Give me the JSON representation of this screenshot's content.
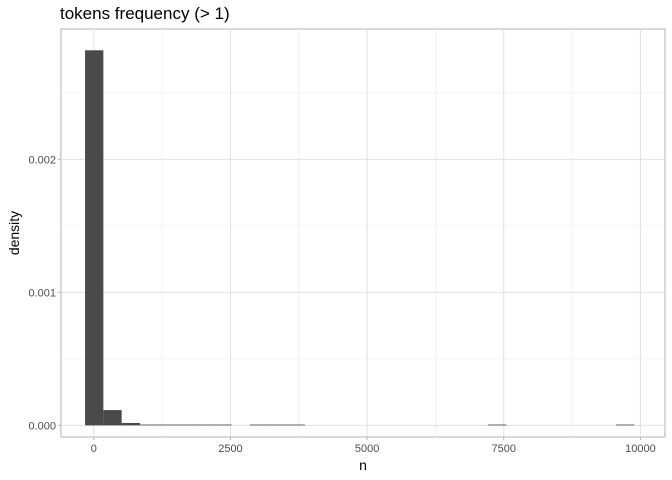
{
  "chart_data": {
    "type": "bar",
    "title": "tokens frequency (> 1)",
    "xlabel": "n",
    "ylabel": "density",
    "xlim": [
      -600,
      10450
    ],
    "ylim": [
      -8.75e-05,
      0.00298
    ],
    "x_ticks": [
      0,
      2500,
      5000,
      7500,
      10000
    ],
    "x_tick_labels": [
      "0",
      "2500",
      "5000",
      "7500",
      "10000"
    ],
    "x_minor_ticks": [
      1250,
      3750,
      6250,
      8750
    ],
    "y_ticks": [
      0,
      0.001,
      0.002
    ],
    "y_tick_labels": [
      "0.000",
      "0.001",
      "0.002"
    ],
    "y_minor_ticks": [
      0.0005,
      0.0015,
      0.0025
    ],
    "grid": true,
    "bin_width": 335,
    "bins": [
      {
        "x0": -160,
        "x1": 175,
        "density": 0.00282
      },
      {
        "x0": 175,
        "x1": 510,
        "density": 0.000115
      },
      {
        "x0": 510,
        "x1": 845,
        "density": 1.8e-05
      },
      {
        "x0": 845,
        "x1": 1180,
        "density": 4e-06
      },
      {
        "x0": 1180,
        "x1": 1515,
        "density": 2e-06
      },
      {
        "x0": 1515,
        "x1": 1850,
        "density": 2e-06
      },
      {
        "x0": 1850,
        "x1": 2185,
        "density": 1e-06
      },
      {
        "x0": 2185,
        "x1": 2520,
        "density": 1e-06
      },
      {
        "x0": 2855,
        "x1": 3190,
        "density": 1e-06
      },
      {
        "x0": 3190,
        "x1": 3525,
        "density": 1e-06
      },
      {
        "x0": 3525,
        "x1": 3860,
        "density": 1e-06
      },
      {
        "x0": 7210,
        "x1": 7545,
        "density": 1e-06
      },
      {
        "x0": 9555,
        "x1": 9890,
        "density": 1e-06
      }
    ]
  }
}
